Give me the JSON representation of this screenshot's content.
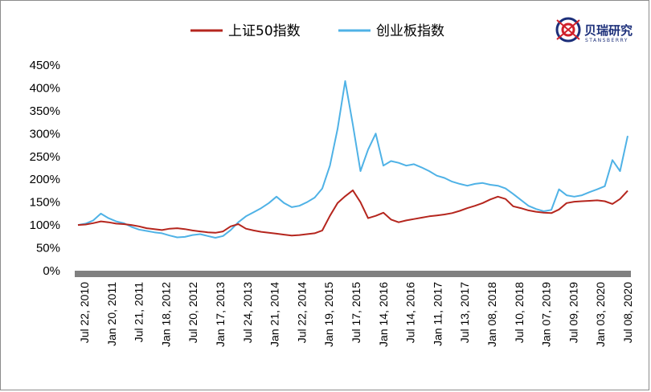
{
  "chart_data": {
    "type": "line",
    "title": "",
    "xlabel": "",
    "ylabel": "",
    "ylim": [
      0,
      450
    ],
    "y_unit": "%",
    "yticks": [
      0,
      50,
      100,
      150,
      200,
      250,
      300,
      350,
      400,
      450
    ],
    "ytick_labels": [
      "0%",
      "50%",
      "100%",
      "150%",
      "200%",
      "250%",
      "300%",
      "350%",
      "400%",
      "450%"
    ],
    "xticks": [
      "Jul 22, 2010",
      "Jan 20, 2011",
      "Jul 21, 2011",
      "Jan 18, 2012",
      "Jul 20, 2012",
      "Jan 17, 2013",
      "Jul 24, 2013",
      "Jan 21, 2014",
      "Jul 22, 2014",
      "Jan 19, 2015",
      "Jul 17, 2015",
      "Jan 14, 2016",
      "Jul 14, 2016",
      "Jan 11, 2017",
      "Jul 13, 2017",
      "Jan 08, 2018",
      "Jul 10, 2018",
      "Jan 07, 2019",
      "Jul 09, 2019",
      "Jan 03, 2020",
      "Jul 08, 2020"
    ],
    "grid": false,
    "legend_position": "top-center",
    "series": [
      {
        "name": "上证50指数",
        "color": "#b5261e",
        "values": [
          100,
          101,
          104,
          108,
          106,
          103,
          102,
          100,
          97,
          93,
          91,
          89,
          92,
          93,
          91,
          88,
          86,
          84,
          83,
          86,
          97,
          102,
          92,
          88,
          85,
          83,
          81,
          79,
          77,
          78,
          80,
          82,
          88,
          120,
          148,
          163,
          176,
          150,
          115,
          120,
          127,
          112,
          106,
          110,
          113,
          116,
          119,
          121,
          123,
          126,
          131,
          137,
          142,
          148,
          156,
          162,
          157,
          141,
          137,
          132,
          129,
          127,
          126,
          134,
          148,
          151,
          152,
          153,
          154,
          152,
          146,
          157,
          175
        ]
      },
      {
        "name": "创业板指数",
        "color": "#4fb2e6",
        "values": [
          100,
          103,
          110,
          125,
          115,
          108,
          104,
          96,
          90,
          87,
          84,
          82,
          77,
          73,
          74,
          78,
          80,
          76,
          72,
          76,
          89,
          106,
          119,
          128,
          137,
          148,
          162,
          148,
          139,
          142,
          150,
          160,
          180,
          230,
          310,
          415,
          320,
          218,
          265,
          300,
          230,
          240,
          236,
          230,
          233,
          226,
          218,
          208,
          203,
          195,
          190,
          186,
          190,
          192,
          188,
          186,
          180,
          168,
          155,
          142,
          135,
          130,
          133,
          178,
          165,
          162,
          165,
          172,
          178,
          185,
          242,
          218,
          295
        ]
      }
    ]
  },
  "legend": {
    "items": [
      {
        "label": "上证50指数"
      },
      {
        "label": "创业板指数"
      }
    ]
  },
  "logo": {
    "name": "贝瑞研究",
    "sub": "STANSBERRY"
  }
}
